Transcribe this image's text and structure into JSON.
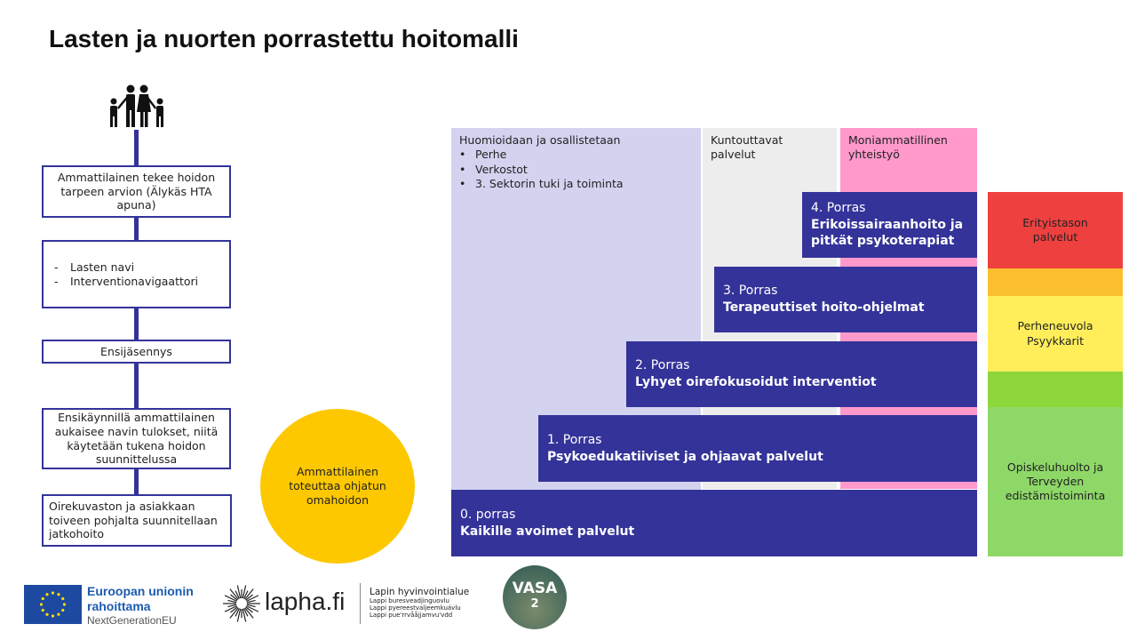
{
  "title": "Lasten ja nuorten porrastettu hoitomalli",
  "flow": {
    "icon": "family-icon",
    "box1": "Ammattilainen tekee hoidon tarpeen arvion (Älykäs HTA apuna)",
    "box2": [
      "Lasten navi",
      "Interventionavigaattori"
    ],
    "box3": "Ensijäsennys",
    "box4": "Ensikäynnillä ammattilainen aukaisee navin tulokset, niitä käytetään tukena hoidon suunnittelussa",
    "box5": "Oirekuvaston ja asiakkaan toiveen pohjalta suunnitellaan jatkohoito",
    "circle": "Ammattilainen toteuttaa ohjatun omahoidon"
  },
  "columns": {
    "involve": {
      "title": "Huomioidaan ja osallistetaan",
      "items": [
        "Perhe",
        "Verkostot",
        "3. Sektorin tuki ja toiminta"
      ]
    },
    "rehab": "Kuntouttavat palvelut",
    "multi": "Moniammatillinen yhteistyö"
  },
  "steps": [
    {
      "level": "0. porras",
      "name": "Kaikille avoimet palvelut"
    },
    {
      "level": "1. Porras",
      "name": "Psykoedukatiiviset ja ohjaavat palvelut"
    },
    {
      "level": "2. Porras",
      "name": "Lyhyet oirefokusoidut interventiot"
    },
    {
      "level": "3. Porras",
      "name": "Terapeuttiset hoito-ohjelmat"
    },
    {
      "level": "4. Porras",
      "name": "Erikoissairaanhoito ja pitkät psykoterapiat"
    }
  ],
  "side": {
    "special": "Erityistason palvelut",
    "family": "Perheneuvola Psyykkarit",
    "student": "Opiskeluhuolto ja Terveyden edistämistoiminta"
  },
  "colors": {
    "navy": "#343399",
    "lavender": "#d3d3f0",
    "grey": "#ededed",
    "pink": "#ff99cc",
    "red": "#ef4040",
    "orange": "#fbbf2f",
    "yellow": "#ffee5a",
    "green": "#8dd63b",
    "lightgreen": "#8ed868",
    "circle": "#fdc800"
  },
  "logos": {
    "eu": {
      "line1": "Euroopan unionin",
      "line2": "rahoittama",
      "line3": "NextGenerationEU"
    },
    "lapha": {
      "name": "lapha.fi",
      "org": "Lapin hyvinvointialue",
      "sub": [
        "Lappi buresveadjinguovlu",
        "Lappi pyereestvaljeemkuávlu",
        "Lappi pue'rrvååjjamvu'vdd"
      ]
    },
    "vasa": {
      "name": "VASA",
      "num": "2"
    }
  }
}
